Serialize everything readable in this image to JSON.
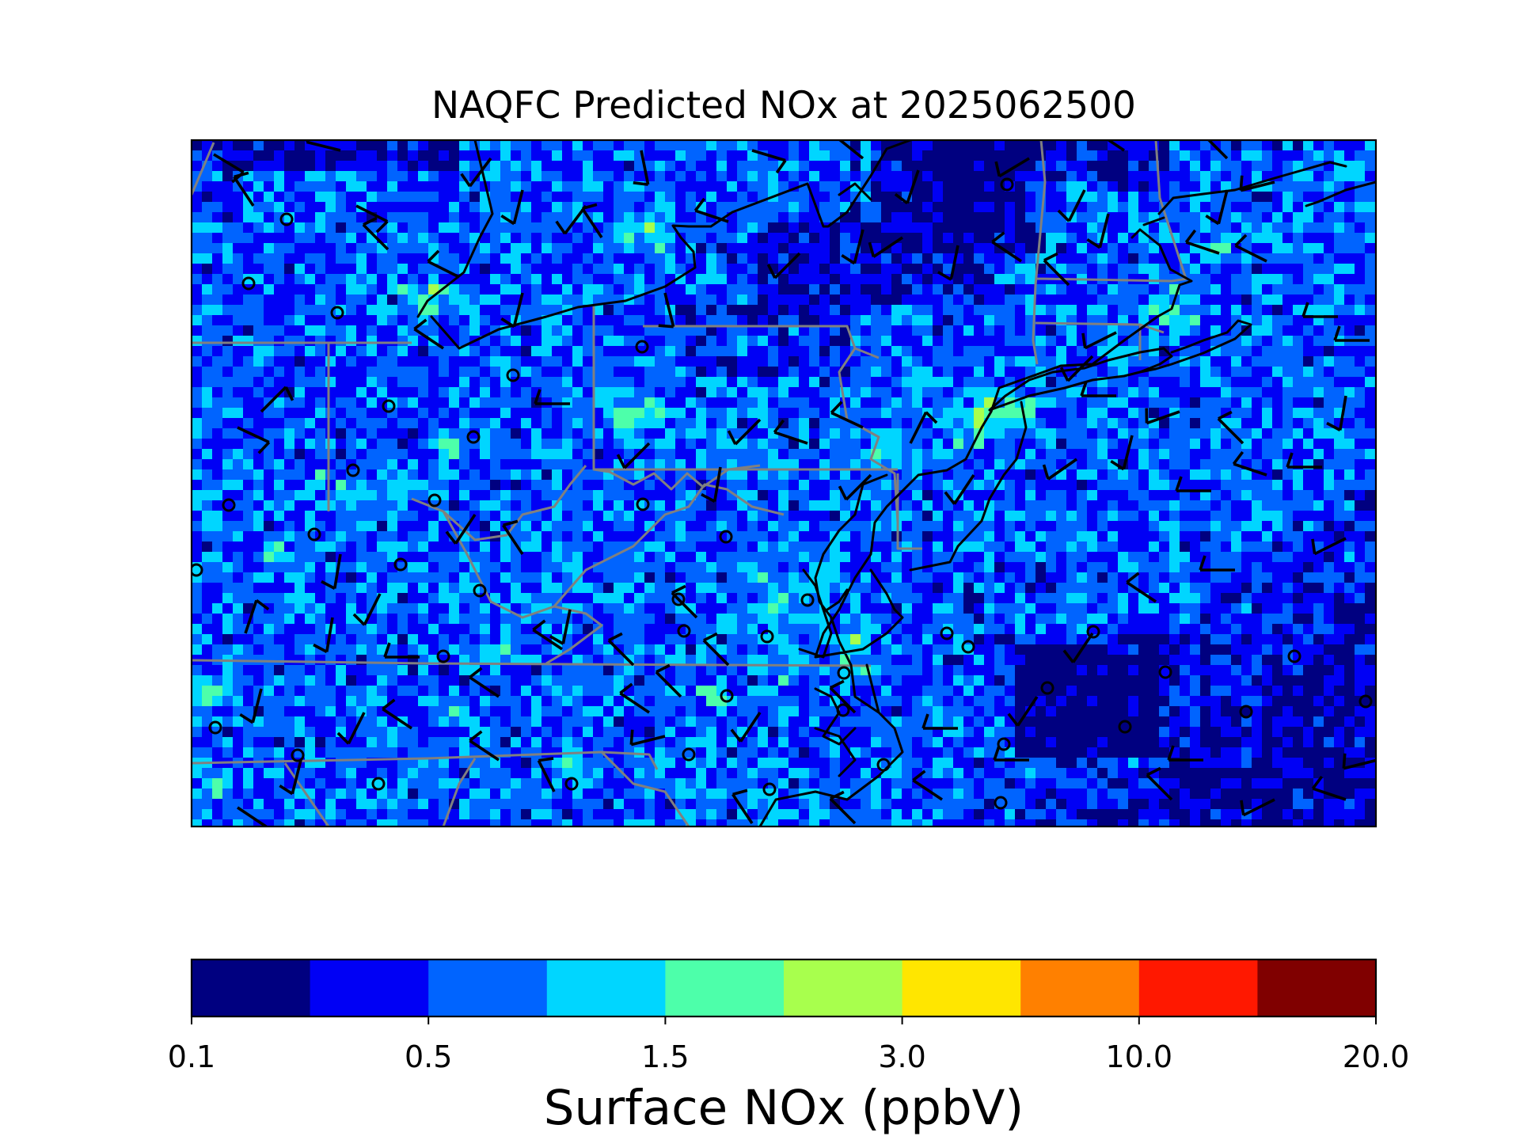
{
  "title": "NAQFC Predicted NOx at 2025062500",
  "colorbar": {
    "label": "Surface NOx (ppbV)",
    "colors": [
      "#000080",
      "#0000f5",
      "#0064ff",
      "#00d6ff",
      "#4dffaa",
      "#a8ff4d",
      "#ffe600",
      "#ff8000",
      "#ff1800",
      "#800000"
    ],
    "tick_labels": [
      "0.1",
      "0.5",
      "1.5",
      "3.0",
      "10.0",
      "20.0"
    ]
  },
  "map_colors": {
    "coastline": "#000000",
    "state_border": "#808080",
    "wind_barb": "#000000"
  },
  "layers": [
    "gridded surface NOx field",
    "coastlines",
    "state borders",
    "wind barbs"
  ]
}
